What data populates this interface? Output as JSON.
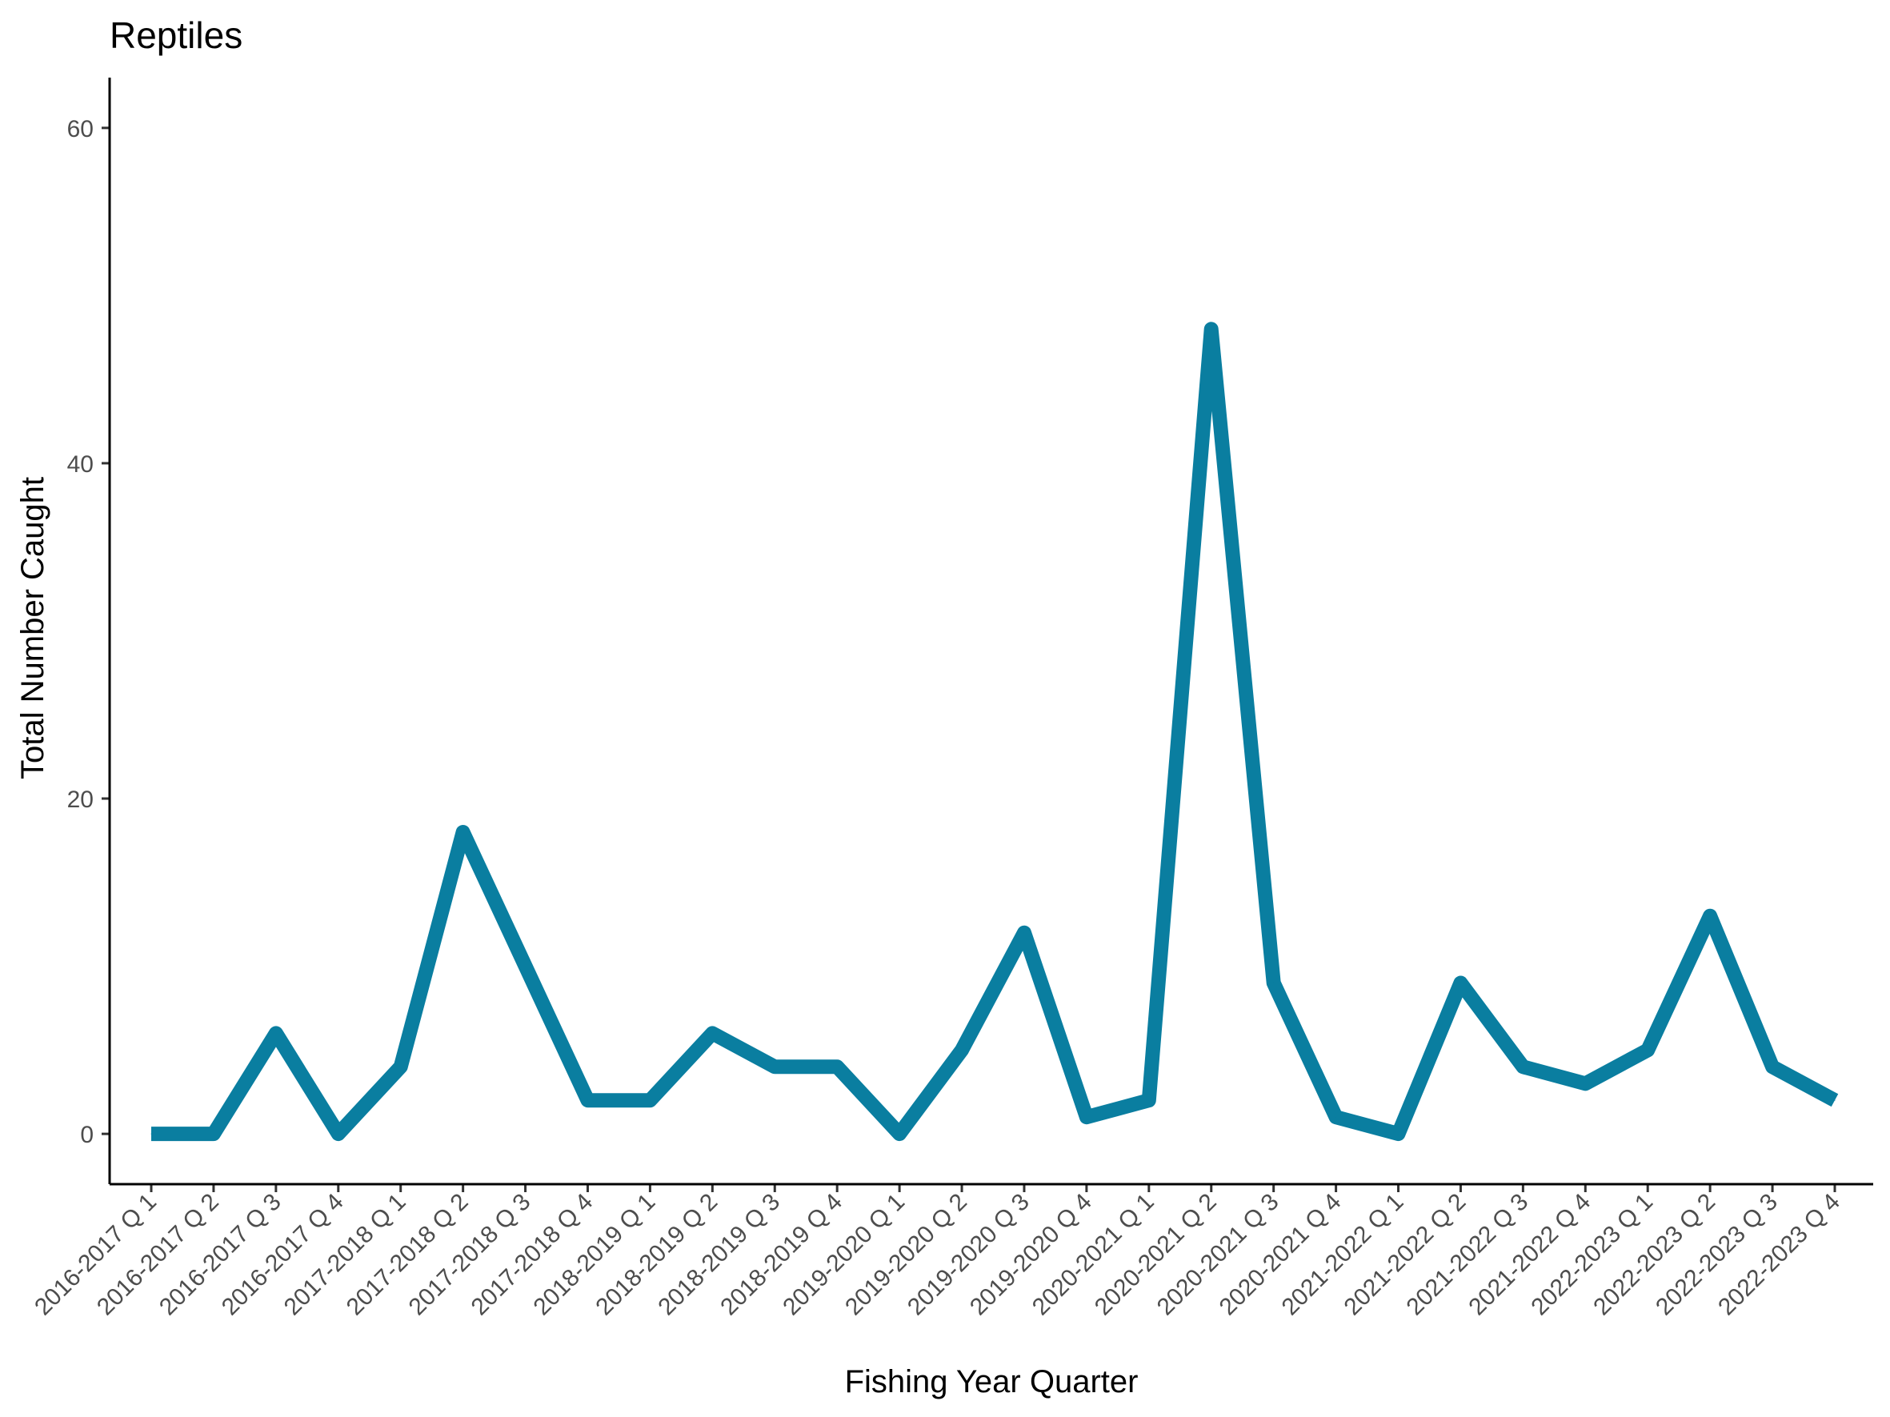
{
  "chart_data": {
    "type": "line",
    "title": "Reptiles",
    "xlabel": "Fishing Year Quarter",
    "ylabel": "Total Number Caught",
    "ylim": [
      -3,
      63
    ],
    "yticks": [
      0,
      20,
      40,
      60
    ],
    "grid": false,
    "legend": "none",
    "line_color": "#0A7EA0",
    "categories": [
      "2016-2017 Q 1",
      "2016-2017 Q 2",
      "2016-2017 Q 3",
      "2016-2017 Q 4",
      "2017-2018 Q 1",
      "2017-2018 Q 2",
      "2017-2018 Q 3",
      "2017-2018 Q 4",
      "2018-2019 Q 1",
      "2018-2019 Q 2",
      "2018-2019 Q 3",
      "2018-2019 Q 4",
      "2019-2020 Q 1",
      "2019-2020 Q 2",
      "2019-2020 Q 3",
      "2019-2020 Q 4",
      "2020-2021 Q 1",
      "2020-2021 Q 2",
      "2020-2021 Q 3",
      "2020-2021 Q 4",
      "2021-2022 Q 1",
      "2021-2022 Q 2",
      "2021-2022 Q 3",
      "2021-2022 Q 4",
      "2022-2023 Q 1",
      "2022-2023 Q 2",
      "2022-2023 Q 3",
      "2022-2023 Q 4"
    ],
    "series": [
      {
        "values": [
          0,
          0,
          6,
          0,
          4,
          18,
          10,
          2,
          2,
          6,
          4,
          4,
          0,
          5,
          12,
          1,
          2,
          48,
          9,
          1,
          0,
          9,
          4,
          3,
          5,
          13,
          4,
          2
        ]
      }
    ]
  }
}
